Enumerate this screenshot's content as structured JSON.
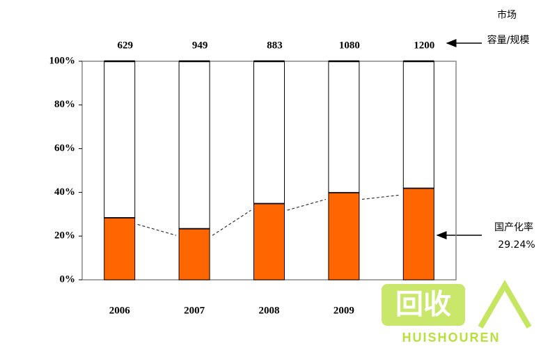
{
  "chart_data": {
    "type": "stacked_bar",
    "categories": [
      "2006",
      "2007",
      "2008",
      "2009",
      null
    ],
    "series": [
      {
        "name": "国产化率",
        "color": "#ff6600",
        "values": [
          28.5,
          23.5,
          35,
          40,
          42
        ]
      },
      {
        "name": "市场容量/规模",
        "color": "#ffffff",
        "values": [
          71.5,
          76.5,
          65,
          60,
          58
        ]
      }
    ],
    "top_labels": [
      629,
      949,
      883,
      1080,
      1200
    ],
    "ylim": [
      0,
      100
    ],
    "yticks": [
      {
        "value": 0,
        "label": "0%"
      },
      {
        "value": 20,
        "label": "20%"
      },
      {
        "value": 40,
        "label": "40%"
      },
      {
        "value": 60,
        "label": "60%"
      },
      {
        "value": 80,
        "label": "80%"
      },
      {
        "value": 100,
        "label": "100%"
      }
    ],
    "annotations": {
      "market_line1": "市场",
      "market_line2": "容量/规模",
      "rate_label": "国产化率",
      "rate_value": "29.24%"
    },
    "watermark": {
      "logo": "回收",
      "text": "HUISHOUREN"
    }
  }
}
